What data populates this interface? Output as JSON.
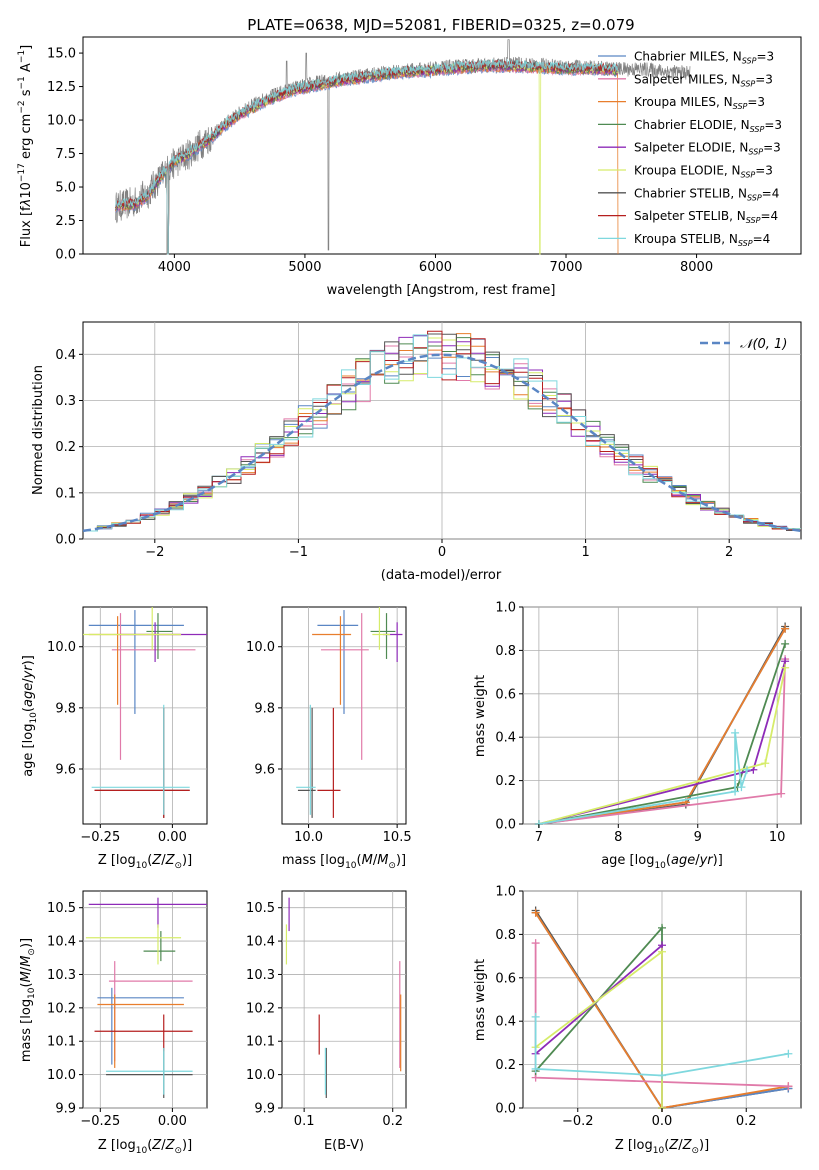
{
  "figure_title": "PLATE=0638, MJD=52081, FIBERID=0325, z=0.079",
  "legend_entries": [
    {
      "text": "Chabrier MILES, N$_{SSP}$=3",
      "label": "Chabrier MILES, N",
      "sub": "SSP",
      "val": "=3",
      "color": "#5a86c4"
    },
    {
      "text": "Salpeter MILES, N$_{SSP}$=3",
      "label": "Salpeter MILES, N",
      "sub": "SSP",
      "val": "=3",
      "color": "#e07aa9"
    },
    {
      "text": "Kroupa MILES, N$_{SSP}$=3",
      "label": "Kroupa MILES, N",
      "sub": "SSP",
      "val": "=3",
      "color": "#e87e2d"
    },
    {
      "text": "Chabrier ELODIE, N$_{SSP}$=3",
      "label": "Chabrier ELODIE, N",
      "sub": "SSP",
      "val": "=3",
      "color": "#4f8a52"
    },
    {
      "text": "Salpeter ELODIE, N$_{SSP}$=3",
      "label": "Salpeter ELODIE, N",
      "sub": "SSP",
      "val": "=3",
      "color": "#8e2bb8"
    },
    {
      "text": "Kroupa ELODIE, N$_{SSP}$=3",
      "label": "Kroupa ELODIE, N",
      "sub": "SSP",
      "val": "=3",
      "color": "#d6ec6a"
    },
    {
      "text": "Chabrier STELIB, N$_{SSP}$=4",
      "label": "Chabrier STELIB, N",
      "sub": "SSP",
      "val": "=4",
      "color": "#555555"
    },
    {
      "text": "Salpeter STELIB, N$_{SSP}$=4",
      "label": "Salpeter STELIB, N",
      "sub": "SSP",
      "val": "=4",
      "color": "#b51f1f"
    },
    {
      "text": "Kroupa STELIB, N$_{SSP}$=4",
      "label": "Kroupa STELIB, N",
      "sub": "SSP",
      "val": "=4",
      "color": "#7fd8de"
    }
  ],
  "chart_data": [
    {
      "id": "spectrum",
      "type": "line",
      "title": "PLATE=0638, MJD=52081, FIBERID=0325, z=0.079",
      "xlabel": "wavelength [Angstrom, rest frame]",
      "ylabel": "Flux [f$_\\lambda$10$^{-17}$ erg cm$^{-2}$ s$^{-1}$ A$^{-1}$]",
      "xlim": [
        3300,
        8800
      ],
      "ylim": [
        0,
        16.2
      ],
      "xticks": [
        4000,
        5000,
        6000,
        7000,
        8000
      ],
      "yticks": [
        0.0,
        2.5,
        5.0,
        7.5,
        10.0,
        12.5,
        15.0
      ],
      "data_color": "#808080",
      "model_color": "#7fd8de",
      "continuum": [
        [
          3550,
          3.5
        ],
        [
          3700,
          3.9
        ],
        [
          3800,
          4.6
        ],
        [
          3900,
          5.8
        ],
        [
          4000,
          6.8
        ],
        [
          4100,
          7.4
        ],
        [
          4200,
          8.2
        ],
        [
          4300,
          8.9
        ],
        [
          4400,
          9.8
        ],
        [
          4500,
          10.5
        ],
        [
          4600,
          11.1
        ],
        [
          4700,
          11.6
        ],
        [
          4800,
          12.0
        ],
        [
          4900,
          12.3
        ],
        [
          5000,
          12.6
        ],
        [
          5200,
          13.0
        ],
        [
          5400,
          13.3
        ],
        [
          5600,
          13.5
        ],
        [
          5800,
          13.7
        ],
        [
          6000,
          13.9
        ],
        [
          6200,
          14.0
        ],
        [
          6400,
          14.1
        ],
        [
          6600,
          14.2
        ],
        [
          6800,
          14.1
        ],
        [
          7000,
          14.0
        ],
        [
          7200,
          13.9
        ],
        [
          7400,
          13.8
        ],
        [
          7600,
          13.8
        ],
        [
          7800,
          13.6
        ],
        [
          7950,
          13.5
        ]
      ],
      "model_continuum": [
        [
          3550,
          3.6
        ],
        [
          3700,
          3.7
        ],
        [
          3800,
          4.4
        ],
        [
          3900,
          5.8
        ],
        [
          4000,
          6.9
        ],
        [
          4100,
          7.4
        ],
        [
          4200,
          8.1
        ],
        [
          4300,
          8.8
        ],
        [
          4400,
          9.7
        ],
        [
          4500,
          10.4
        ],
        [
          4600,
          10.9
        ],
        [
          4700,
          11.4
        ],
        [
          4800,
          11.8
        ],
        [
          4900,
          12.2
        ],
        [
          5000,
          12.4
        ],
        [
          5200,
          12.8
        ],
        [
          5400,
          13.1
        ],
        [
          5600,
          13.4
        ],
        [
          5800,
          13.6
        ],
        [
          6000,
          13.7
        ],
        [
          6200,
          13.9
        ],
        [
          6400,
          14.0
        ],
        [
          6600,
          14.0
        ],
        [
          6800,
          13.9
        ],
        [
          7000,
          13.8
        ],
        [
          7200,
          13.8
        ],
        [
          7400,
          13.7
        ]
      ]
    },
    {
      "id": "residuals",
      "type": "step",
      "xlabel": "(data-model)/error",
      "ylabel": "Normed distribution",
      "xlim": [
        -2.5,
        2.5
      ],
      "ylim": [
        0,
        0.47
      ],
      "xticks": [
        -2,
        -1,
        0,
        1,
        2
      ],
      "yticks": [
        0.0,
        0.1,
        0.2,
        0.3,
        0.4
      ],
      "bin_width": 0.1,
      "normal_label": "$\\mathcal{N}(0,1)$",
      "normal_label_display": "𝒩(0, 1)",
      "normal_color": "#5a86c4"
    },
    {
      "id": "age_vs_Z",
      "type": "errorbar",
      "xlabel": "Z [log$_{10}$(Z/Z$_\\odot$)]",
      "ylabel": "age  [log$_{10}$(age/yr)]",
      "xlim": [
        -0.31,
        0.12
      ],
      "ylim": [
        9.42,
        10.13
      ],
      "xticks": [
        -0.25,
        0.0
      ],
      "yticks": [
        9.6,
        9.8,
        10.0
      ],
      "points": [
        {
          "c": "#5a86c4",
          "x": -0.13,
          "y": 10.07,
          "xl": -0.29,
          "xh": 0.04,
          "yl": 9.78,
          "yh": 10.12
        },
        {
          "c": "#e07aa9",
          "x": -0.18,
          "y": 9.99,
          "xl": -0.21,
          "xh": 0.08,
          "yl": 9.63,
          "yh": 10.11
        },
        {
          "c": "#e87e2d",
          "x": -0.19,
          "y": 10.04,
          "xl": -0.29,
          "xh": 0.03,
          "yl": 9.81,
          "yh": 10.1
        },
        {
          "c": "#4f8a52",
          "x": -0.05,
          "y": 10.05,
          "xl": -0.09,
          "xh": 0.0,
          "yl": 9.96,
          "yh": 10.11
        },
        {
          "c": "#8e2bb8",
          "x": -0.06,
          "y": 10.04,
          "xl": -0.18,
          "xh": 0.12,
          "yl": 9.95,
          "yh": 10.08
        },
        {
          "c": "#d6ec6a",
          "x": -0.07,
          "y": 10.04,
          "xl": -0.31,
          "xh": 0.03,
          "yl": 9.99,
          "yh": 10.13
        },
        {
          "c": "#555555",
          "x": -0.03,
          "y": 9.53,
          "xl": -0.27,
          "xh": 0.06,
          "yl": 9.44,
          "yh": 9.8
        },
        {
          "c": "#b51f1f",
          "x": -0.03,
          "y": 9.53,
          "xl": -0.27,
          "xh": 0.06,
          "yl": 9.44,
          "yh": 9.8
        },
        {
          "c": "#7fd8de",
          "x": -0.03,
          "y": 9.54,
          "xl": -0.28,
          "xh": 0.06,
          "yl": 9.45,
          "yh": 9.81
        }
      ]
    },
    {
      "id": "age_vs_mass",
      "type": "errorbar",
      "xlabel": "mass [log$_{10}$(M/M$_\\odot$)]",
      "ylabel": "",
      "xlim": [
        9.85,
        10.55
      ],
      "ylim": [
        9.42,
        10.13
      ],
      "xticks": [
        10.0,
        10.5
      ],
      "yticks": [
        9.6,
        9.8,
        10.0
      ],
      "points": [
        {
          "c": "#5a86c4",
          "x": 10.2,
          "y": 10.07,
          "xl": 10.05,
          "xh": 10.28,
          "yl": 9.78,
          "yh": 10.12
        },
        {
          "c": "#e07aa9",
          "x": 10.3,
          "y": 9.99,
          "xl": 10.07,
          "xh": 10.34,
          "yl": 9.63,
          "yh": 10.11
        },
        {
          "c": "#e87e2d",
          "x": 10.18,
          "y": 10.04,
          "xl": 10.02,
          "xh": 10.24,
          "yl": 9.81,
          "yh": 10.1
        },
        {
          "c": "#4f8a52",
          "x": 10.44,
          "y": 10.05,
          "xl": 10.35,
          "xh": 10.49,
          "yl": 9.96,
          "yh": 10.11
        },
        {
          "c": "#8e2bb8",
          "x": 10.5,
          "y": 10.04,
          "xl": 10.42,
          "xh": 10.53,
          "yl": 9.95,
          "yh": 10.08
        },
        {
          "c": "#d6ec6a",
          "x": 10.4,
          "y": 10.04,
          "xl": 10.36,
          "xh": 10.46,
          "yl": 9.99,
          "yh": 10.13
        },
        {
          "c": "#555555",
          "x": 10.02,
          "y": 9.53,
          "xl": 9.94,
          "xh": 10.04,
          "yl": 9.44,
          "yh": 9.8
        },
        {
          "c": "#b51f1f",
          "x": 10.14,
          "y": 9.53,
          "xl": 10.05,
          "xh": 10.18,
          "yl": 9.44,
          "yh": 9.8
        },
        {
          "c": "#7fd8de",
          "x": 10.01,
          "y": 9.54,
          "xl": 9.93,
          "xh": 10.04,
          "yl": 9.45,
          "yh": 9.81
        }
      ]
    },
    {
      "id": "mass_weight_vs_age",
      "type": "line",
      "xlabel": "age  [log$_{10}$(age/yr)]",
      "ylabel": "mass weight",
      "xlim": [
        6.8,
        10.3
      ],
      "ylim": [
        0,
        1.0
      ],
      "xticks": [
        7,
        8,
        9,
        10
      ],
      "yticks": [
        0.0,
        0.2,
        0.4,
        0.6,
        0.8,
        1.0
      ],
      "series": [
        {
          "c": "#555555",
          "pts": [
            [
              7.0,
              0.0
            ],
            [
              8.85,
              0.09
            ],
            [
              10.1,
              0.91
            ]
          ]
        },
        {
          "c": "#5a86c4",
          "pts": [
            [
              7.0,
              0.0
            ],
            [
              8.85,
              0.1
            ],
            [
              10.1,
              0.9
            ]
          ]
        },
        {
          "c": "#e87e2d",
          "pts": [
            [
              7.0,
              0.0
            ],
            [
              8.85,
              0.1
            ],
            [
              10.1,
              0.9
            ]
          ]
        },
        {
          "c": "#e07aa9",
          "pts": [
            [
              7.0,
              0.0
            ],
            [
              10.05,
              0.14
            ],
            [
              10.1,
              0.76
            ]
          ]
        },
        {
          "c": "#4f8a52",
          "pts": [
            [
              7.0,
              0.0
            ],
            [
              9.5,
              0.17
            ],
            [
              10.1,
              0.83
            ]
          ]
        },
        {
          "c": "#8e2bb8",
          "pts": [
            [
              7.0,
              0.0
            ],
            [
              9.7,
              0.25
            ],
            [
              10.1,
              0.75
            ]
          ]
        },
        {
          "c": "#d6ec6a",
          "pts": [
            [
              7.0,
              0.0
            ],
            [
              9.85,
              0.28
            ],
            [
              10.1,
              0.72
            ]
          ]
        },
        {
          "c": "#7fd8de",
          "pts": [
            [
              7.0,
              0.0
            ],
            [
              9.47,
              0.15
            ],
            [
              9.47,
              0.42
            ],
            [
              9.55,
              0.17
            ],
            [
              9.62,
              0.25
            ]
          ]
        }
      ]
    },
    {
      "id": "mass_vs_Z",
      "type": "errorbar",
      "xlabel": "Z [log$_{10}$(Z/Z$_\\odot$)]",
      "ylabel": "mass [log$_{10}$(M/M$_\\odot$)]",
      "xlim": [
        -0.31,
        0.12
      ],
      "ylim": [
        9.9,
        10.55
      ],
      "xticks": [
        -0.25,
        0.0
      ],
      "yticks": [
        9.9,
        10.0,
        10.1,
        10.2,
        10.3,
        10.4,
        10.5
      ],
      "points": [
        {
          "c": "#5a86c4",
          "x": -0.21,
          "y": 10.23,
          "xl": -0.26,
          "xh": 0.04,
          "yl": 10.03,
          "yh": 10.26
        },
        {
          "c": "#e07aa9",
          "x": -0.2,
          "y": 10.28,
          "xl": -0.22,
          "xh": 0.07,
          "yl": 10.04,
          "yh": 10.34
        },
        {
          "c": "#e87e2d",
          "x": -0.2,
          "y": 10.21,
          "xl": -0.26,
          "xh": 0.04,
          "yl": 10.02,
          "yh": 10.24
        },
        {
          "c": "#4f8a52",
          "x": -0.04,
          "y": 10.37,
          "xl": -0.1,
          "xh": 0.01,
          "yl": 10.34,
          "yh": 10.43
        },
        {
          "c": "#8e2bb8",
          "x": -0.05,
          "y": 10.51,
          "xl": -0.29,
          "xh": 0.12,
          "yl": 10.44,
          "yh": 10.53
        },
        {
          "c": "#d6ec6a",
          "x": -0.05,
          "y": 10.41,
          "xl": -0.3,
          "xh": 0.03,
          "yl": 10.33,
          "yh": 10.45
        },
        {
          "c": "#555555",
          "x": -0.03,
          "y": 10.0,
          "xl": -0.23,
          "xh": 0.07,
          "yl": 9.93,
          "yh": 10.08
        },
        {
          "c": "#b51f1f",
          "x": -0.03,
          "y": 10.13,
          "xl": -0.27,
          "xh": 0.07,
          "yl": 10.07,
          "yh": 10.18
        },
        {
          "c": "#7fd8de",
          "x": -0.03,
          "y": 10.01,
          "xl": -0.23,
          "xh": 0.07,
          "yl": 9.94,
          "yh": 10.08
        }
      ]
    },
    {
      "id": "mass_vs_EBV",
      "type": "errorbar",
      "xlabel": "E(B-V)",
      "ylabel": "",
      "xlim": [
        0.075,
        0.215
      ],
      "ylim": [
        9.9,
        10.55
      ],
      "xticks": [
        0.1,
        0.2
      ],
      "yticks": [
        9.9,
        10.0,
        10.1,
        10.2,
        10.3,
        10.4,
        10.5
      ],
      "points": [
        {
          "c": "#8e2bb8",
          "x": 0.083,
          "y": 10.51,
          "xl": 0.083,
          "xh": 0.083,
          "yl": 10.43,
          "yh": 10.53
        },
        {
          "c": "#d6ec6a",
          "x": 0.08,
          "y": 10.41,
          "xl": 0.08,
          "xh": 0.08,
          "yl": 10.33,
          "yh": 10.45
        },
        {
          "c": "#b51f1f",
          "x": 0.117,
          "y": 10.13,
          "xl": 0.117,
          "xh": 0.117,
          "yl": 10.06,
          "yh": 10.18
        },
        {
          "c": "#555555",
          "x": 0.125,
          "y": 10.0,
          "xl": 0.125,
          "xh": 0.125,
          "yl": 9.93,
          "yh": 10.08
        },
        {
          "c": "#7fd8de",
          "x": 0.124,
          "y": 10.01,
          "xl": 0.124,
          "xh": 0.124,
          "yl": 9.94,
          "yh": 10.08
        },
        {
          "c": "#e07aa9",
          "x": 0.208,
          "y": 10.28,
          "xl": 0.208,
          "xh": 0.208,
          "yl": 10.02,
          "yh": 10.34
        },
        {
          "c": "#e87e2d",
          "x": 0.209,
          "y": 10.21,
          "xl": 0.209,
          "xh": 0.209,
          "yl": 10.01,
          "yh": 10.24
        }
      ]
    },
    {
      "id": "mass_weight_vs_Z",
      "type": "line",
      "xlabel": "Z [log$_{10}$(Z/Z$_\\odot$)]",
      "ylabel": "mass weight",
      "xlim": [
        -0.33,
        0.33
      ],
      "ylim": [
        0,
        1.0
      ],
      "xticks": [
        -0.2,
        0.0,
        0.2
      ],
      "yticks": [
        0.0,
        0.2,
        0.4,
        0.6,
        0.8,
        1.0
      ],
      "series": [
        {
          "c": "#555555",
          "pts": [
            [
              -0.3,
              0.91
            ],
            [
              0.0,
              0.0
            ],
            [
              0.3,
              0.09
            ]
          ]
        },
        {
          "c": "#5a86c4",
          "pts": [
            [
              -0.3,
              0.9
            ],
            [
              0.0,
              0.0
            ],
            [
              0.3,
              0.09
            ]
          ]
        },
        {
          "c": "#e87e2d",
          "pts": [
            [
              -0.3,
              0.9
            ],
            [
              0.0,
              0.0
            ],
            [
              0.3,
              0.1
            ]
          ]
        },
        {
          "c": "#e07aa9",
          "pts": [
            [
              -0.3,
              0.76
            ],
            [
              -0.3,
              0.14
            ],
            [
              0.3,
              0.1
            ]
          ]
        },
        {
          "c": "#4f8a52",
          "pts": [
            [
              -0.3,
              0.17
            ],
            [
              0.0,
              0.83
            ],
            [
              0.0,
              0.0
            ]
          ]
        },
        {
          "c": "#8e2bb8",
          "pts": [
            [
              -0.3,
              0.25
            ],
            [
              0.0,
              0.75
            ],
            [
              0.0,
              0.0
            ]
          ]
        },
        {
          "c": "#d6ec6a",
          "pts": [
            [
              -0.3,
              0.28
            ],
            [
              0.0,
              0.72
            ],
            [
              0.0,
              0.0
            ]
          ]
        },
        {
          "c": "#7fd8de",
          "pts": [
            [
              -0.3,
              0.42
            ],
            [
              -0.3,
              0.18
            ],
            [
              0.0,
              0.15
            ],
            [
              0.3,
              0.25
            ]
          ]
        }
      ]
    }
  ]
}
